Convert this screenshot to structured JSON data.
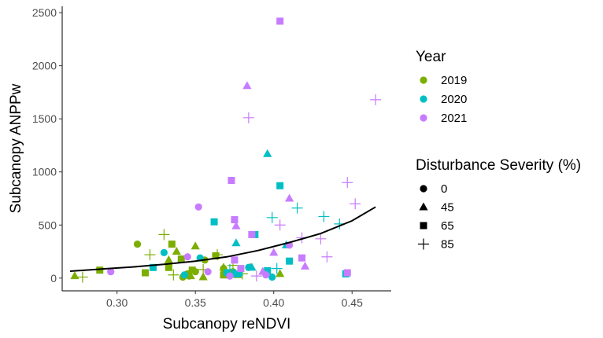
{
  "chart_data": {
    "type": "scatter",
    "title": "",
    "xlabel": "Subcanopy reNDVI",
    "ylabel": "Subcanopy ANPPw",
    "xlim": [
      0.265,
      0.475
    ],
    "ylim": [
      -120,
      2560
    ],
    "x_ticks": [
      0.3,
      0.35,
      0.4,
      0.45
    ],
    "x_tick_labels": [
      "0.30",
      "0.35",
      "0.40",
      "0.45"
    ],
    "y_ticks": [
      0,
      500,
      1000,
      1500,
      2000,
      2500
    ],
    "y_tick_labels": [
      "0",
      "500",
      "1000",
      "1500",
      "2000",
      "2500"
    ],
    "grid": false,
    "legend_position": "right",
    "color_legend": {
      "title": "Year",
      "entries": [
        {
          "label": "2019",
          "color": "#7CAE00"
        },
        {
          "label": "2020",
          "color": "#00BFC4"
        },
        {
          "label": "2021",
          "color": "#C77CFF"
        }
      ]
    },
    "shape_legend": {
      "title": "Disturbance Severity (%)",
      "entries": [
        {
          "label": "0",
          "shape": "circle"
        },
        {
          "label": "45",
          "shape": "triangle"
        },
        {
          "label": "65",
          "shape": "square"
        },
        {
          "label": "85",
          "shape": "plus"
        }
      ]
    },
    "trend_line": {
      "x": [
        0.27,
        0.29,
        0.31,
        0.33,
        0.35,
        0.37,
        0.39,
        0.41,
        0.43,
        0.45,
        0.465
      ],
      "y": [
        65,
        85,
        105,
        130,
        160,
        200,
        260,
        335,
        420,
        540,
        670
      ]
    },
    "series": [
      {
        "year": "2019",
        "severity": "0",
        "points": [
          [
            0.313,
            320
          ],
          [
            0.342,
            10
          ],
          [
            0.346,
            20
          ],
          [
            0.35,
            60
          ],
          [
            0.356,
            170
          ],
          [
            0.368,
            90
          ],
          [
            0.374,
            60
          ],
          [
            0.345,
            40
          ]
        ]
      },
      {
        "year": "2019",
        "severity": "45",
        "points": [
          [
            0.273,
            20
          ],
          [
            0.333,
            170
          ],
          [
            0.338,
            250
          ],
          [
            0.347,
            20
          ],
          [
            0.35,
            300
          ],
          [
            0.355,
            10
          ],
          [
            0.368,
            100
          ],
          [
            0.377,
            30
          ],
          [
            0.385,
            100
          ],
          [
            0.404,
            40
          ]
        ]
      },
      {
        "year": "2019",
        "severity": "65",
        "points": [
          [
            0.289,
            75
          ],
          [
            0.318,
            50
          ],
          [
            0.333,
            100
          ],
          [
            0.341,
            180
          ],
          [
            0.348,
            75
          ],
          [
            0.363,
            210
          ],
          [
            0.368,
            30
          ],
          [
            0.335,
            320
          ]
        ]
      },
      {
        "year": "2019",
        "severity": "85",
        "points": [
          [
            0.278,
            10
          ],
          [
            0.321,
            220
          ],
          [
            0.33,
            410
          ],
          [
            0.336,
            30
          ],
          [
            0.355,
            80
          ],
          [
            0.364,
            220
          ],
          [
            0.374,
            120
          ],
          [
            0.38,
            40
          ]
        ]
      },
      {
        "year": "2020",
        "severity": "0",
        "points": [
          [
            0.33,
            240
          ],
          [
            0.343,
            30
          ],
          [
            0.353,
            190
          ],
          [
            0.37,
            50
          ],
          [
            0.378,
            40
          ],
          [
            0.384,
            100
          ],
          [
            0.399,
            10
          ]
        ]
      },
      {
        "year": "2020",
        "severity": "45",
        "points": [
          [
            0.376,
            330
          ],
          [
            0.396,
            1170
          ],
          [
            0.408,
            310
          ],
          [
            0.386,
            100
          ]
        ]
      },
      {
        "year": "2020",
        "severity": "65",
        "points": [
          [
            0.323,
            100
          ],
          [
            0.362,
            530
          ],
          [
            0.388,
            410
          ],
          [
            0.396,
            70
          ],
          [
            0.404,
            870
          ],
          [
            0.41,
            160
          ],
          [
            0.446,
            40
          ],
          [
            0.375,
            40
          ]
        ]
      },
      {
        "year": "2020",
        "severity": "85",
        "points": [
          [
            0.399,
            570
          ],
          [
            0.402,
            90
          ],
          [
            0.415,
            660
          ],
          [
            0.432,
            580
          ],
          [
            0.442,
            510
          ],
          [
            0.372,
            80
          ]
        ]
      },
      {
        "year": "2021",
        "severity": "0",
        "points": [
          [
            0.296,
            60
          ],
          [
            0.352,
            670
          ],
          [
            0.358,
            60
          ],
          [
            0.372,
            20
          ],
          [
            0.395,
            30
          ],
          [
            0.41,
            310
          ],
          [
            0.345,
            200
          ]
        ]
      },
      {
        "year": "2021",
        "severity": "45",
        "points": [
          [
            0.376,
            490
          ],
          [
            0.383,
            1810
          ],
          [
            0.4,
            240
          ],
          [
            0.41,
            750
          ],
          [
            0.42,
            110
          ],
          [
            0.393,
            60
          ]
        ]
      },
      {
        "year": "2021",
        "severity": "65",
        "points": [
          [
            0.373,
            920
          ],
          [
            0.375,
            550
          ],
          [
            0.375,
            170
          ],
          [
            0.386,
            410
          ],
          [
            0.404,
            2420
          ],
          [
            0.418,
            190
          ],
          [
            0.447,
            50
          ],
          [
            0.379,
            90
          ]
        ]
      },
      {
        "year": "2021",
        "severity": "85",
        "points": [
          [
            0.384,
            1510
          ],
          [
            0.404,
            500
          ],
          [
            0.418,
            380
          ],
          [
            0.43,
            370
          ],
          [
            0.434,
            200
          ],
          [
            0.447,
            900
          ],
          [
            0.452,
            700
          ],
          [
            0.465,
            1680
          ],
          [
            0.389,
            20
          ]
        ]
      }
    ]
  }
}
